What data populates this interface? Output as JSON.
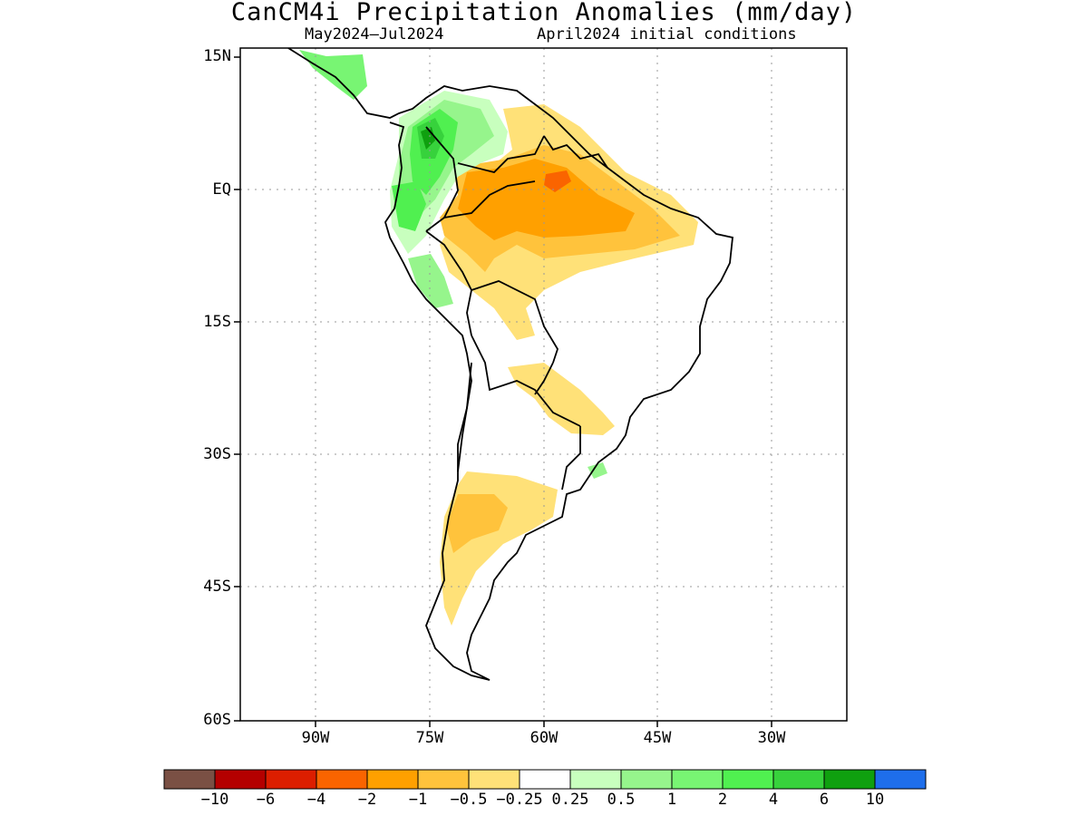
{
  "title": "CanCM4i Precipitation Anomalies (mm/day)",
  "subtitle_left": "May2024–Jul2024",
  "subtitle_right": "April2024 initial conditions",
  "lat_labels": [
    "15N",
    "EQ",
    "15S",
    "30S",
    "45S",
    "60S"
  ],
  "lon_labels": [
    "90W",
    "75W",
    "60W",
    "45W",
    "30W"
  ],
  "colorbar": {
    "colors": [
      "#7a5044",
      "#b40000",
      "#dc1e00",
      "#fa6400",
      "#ffa000",
      "#ffc33c",
      "#ffe178",
      "#ffffff",
      "#c8ffbe",
      "#96f58c",
      "#78f573",
      "#50f050",
      "#37d23c",
      "#0fa00f",
      "#1e6eeb"
    ],
    "labels": [
      "−10",
      "−6",
      "−4",
      "−2",
      "−1",
      "−0.5",
      "−0.25",
      "0.25",
      "0.5",
      "1",
      "2",
      "4",
      "6",
      "10"
    ]
  },
  "map": {
    "lon_range": [
      -100,
      -20
    ],
    "lat_range": [
      -60,
      15
    ],
    "features": [
      "green wet anomalies over Colombia and northwestern South America",
      "orange dry anomalies over northern Brazil and the Amazon basin",
      "yellow dry anomalies over Bolivia, Paraguay and central Argentina"
    ]
  }
}
